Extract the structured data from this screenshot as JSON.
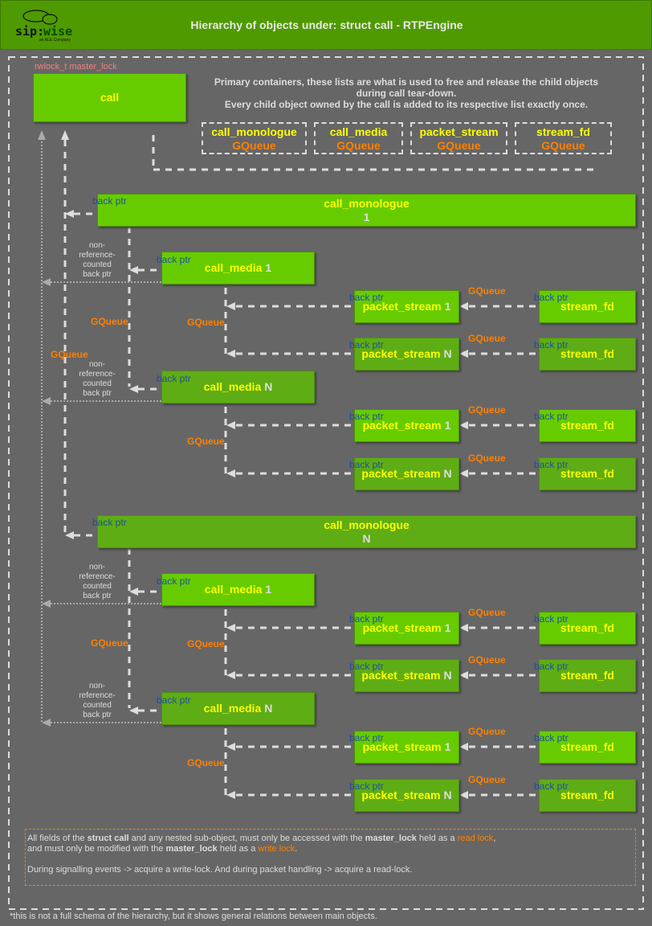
{
  "header": {
    "title": "Hierarchy of objects under: struct call - RTPEngine",
    "logo_text": "sip:wise",
    "logo_sub": "an ALE Company"
  },
  "call": {
    "lock_label": "rwlock_t master_lock",
    "label": "call"
  },
  "containers_note": [
    "Primary containers, these lists are what is used to free and release the child objects",
    "during call tear-down.",
    "Every child object owned by the call is added to its respective list exactly once."
  ],
  "containers": [
    {
      "name": "call_monologue",
      "type": "GQueue"
    },
    {
      "name": "call_media",
      "type": "GQueue"
    },
    {
      "name": "packet_stream",
      "type": "GQueue"
    },
    {
      "name": "stream_fd",
      "type": "GQueue"
    }
  ],
  "labels": {
    "back_ptr": "back ptr",
    "gqueue": "GQueue",
    "non_ref": [
      "non-",
      "reference-",
      "counted",
      "back ptr"
    ]
  },
  "monologues": [
    {
      "name": "call_monologue",
      "index": "1",
      "medias": [
        {
          "name": "call_media",
          "index": "1",
          "streams": [
            {
              "name": "packet_stream",
              "index": "1",
              "fd": "stream_fd"
            },
            {
              "name": "packet_stream",
              "index": "N",
              "fd": "stream_fd"
            }
          ]
        },
        {
          "name": "call_media",
          "index": "N",
          "streams": [
            {
              "name": "packet_stream",
              "index": "1",
              "fd": "stream_fd"
            },
            {
              "name": "packet_stream",
              "index": "N",
              "fd": "stream_fd"
            }
          ]
        }
      ]
    },
    {
      "name": "call_monologue",
      "index": "N",
      "medias": [
        {
          "name": "call_media",
          "index": "1",
          "streams": [
            {
              "name": "packet_stream",
              "index": "1",
              "fd": "stream_fd"
            },
            {
              "name": "packet_stream",
              "index": "N",
              "fd": "stream_fd"
            }
          ]
        },
        {
          "name": "call_media",
          "index": "N",
          "streams": [
            {
              "name": "packet_stream",
              "index": "1",
              "fd": "stream_fd"
            },
            {
              "name": "packet_stream",
              "index": "N",
              "fd": "stream_fd"
            }
          ]
        }
      ]
    }
  ],
  "note": {
    "line1": [
      {
        "text": "All fields of the ",
        "style": "normal"
      },
      {
        "text": "struct call",
        "style": "bold"
      },
      {
        "text": " and any nested sub-object, must only be accessed with the ",
        "style": "normal"
      },
      {
        "text": "master_lock",
        "style": "bold"
      },
      {
        "text": " held as a ",
        "style": "normal"
      },
      {
        "text": "read lock",
        "style": "orange"
      },
      {
        "text": ",",
        "style": "normal"
      }
    ],
    "line2": [
      {
        "text": "and must only be modified with the ",
        "style": "normal"
      },
      {
        "text": "master_lock",
        "style": "bold"
      },
      {
        "text": " held as a ",
        "style": "normal"
      },
      {
        "text": "write lock",
        "style": "orange"
      },
      {
        "text": ".",
        "style": "normal"
      }
    ],
    "line3": "During signalling events -> acquire a write-lock. And during packet handling -> acquire a read-lock."
  },
  "footer": "*this is not a full schema of the hierarchy, but it shows general relations between main objects.",
  "colors": {
    "header_bg": "#4f9a00",
    "background": "#666666",
    "box_light": "#66cc00",
    "box_dark": "#5fad14",
    "object_name": "#ffff00",
    "gqueue": "#ff8000",
    "back_ptr": "#1f4fa0",
    "lock_label": "#f08080"
  }
}
